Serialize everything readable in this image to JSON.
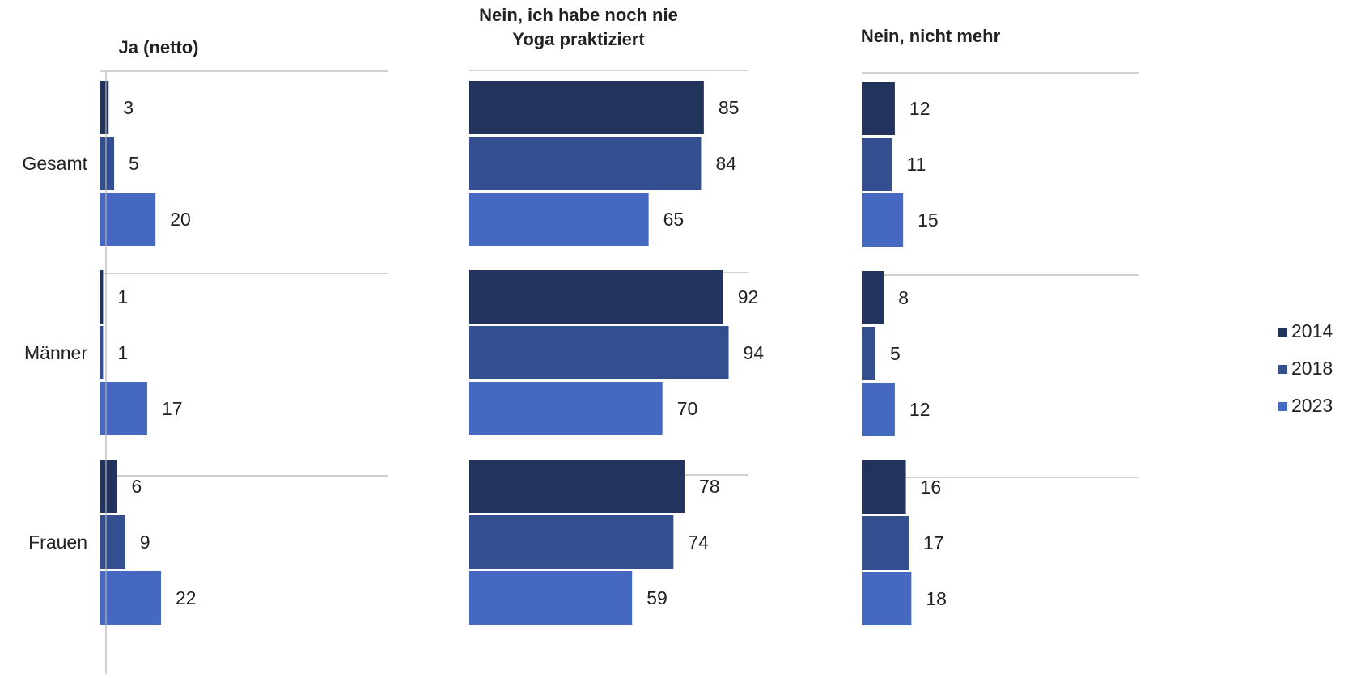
{
  "chart_data": {
    "type": "bar",
    "orientation": "horizontal",
    "categories": [
      "Gesamt",
      "Männer",
      "Frauen"
    ],
    "series_names": [
      "2014",
      "2018",
      "2023"
    ],
    "colors": [
      "#22335e",
      "#334f8f",
      "#4569c1"
    ],
    "legend_position": "right",
    "grid": false,
    "panels": [
      {
        "title": "Ja (netto)",
        "values": {
          "2014": [
            3,
            1,
            6
          ],
          "2018": [
            5,
            1,
            9
          ],
          "2023": [
            20,
            17,
            22
          ]
        }
      },
      {
        "title": "Nein, ich habe noch nie Yoga praktiziert",
        "title_lines": [
          "Nein, ich habe noch nie",
          "Yoga praktiziert"
        ],
        "values": {
          "2014": [
            85,
            92,
            78
          ],
          "2018": [
            84,
            94,
            74
          ],
          "2023": [
            65,
            70,
            59
          ]
        }
      },
      {
        "title": "Nein, nicht mehr",
        "values": {
          "2014": [
            12,
            8,
            16
          ],
          "2018": [
            11,
            5,
            17
          ],
          "2023": [
            15,
            12,
            18
          ]
        }
      }
    ]
  }
}
